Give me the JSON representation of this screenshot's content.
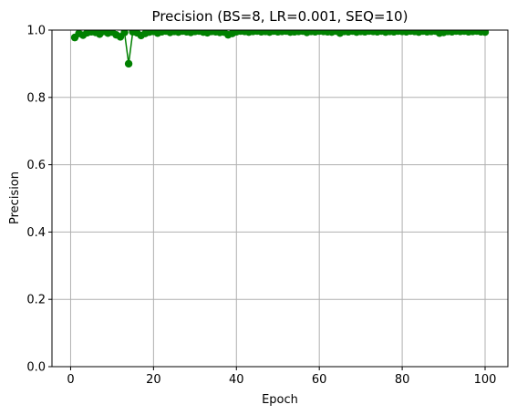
{
  "chart_data": {
    "type": "line",
    "title": "Precision (BS=8, LR=0.001, SEQ=10)",
    "xlabel": "Epoch",
    "ylabel": "Precision",
    "xlim": [
      -4.5,
      105.5
    ],
    "ylim": [
      0.0,
      1.0
    ],
    "xticks": [
      0,
      20,
      40,
      60,
      80,
      100
    ],
    "xtick_labels": [
      "0",
      "20",
      "40",
      "60",
      "80",
      "100"
    ],
    "yticks": [
      0.0,
      0.2,
      0.4,
      0.6,
      0.8,
      1.0
    ],
    "ytick_labels": [
      "0.0",
      "0.2",
      "0.4",
      "0.6",
      "0.8",
      "1.0"
    ],
    "grid": true,
    "series_color": "#008000",
    "marker": "circle",
    "series": [
      {
        "x": [
          1,
          2,
          3,
          4,
          5,
          6,
          7,
          8,
          9,
          10,
          11,
          12,
          13,
          14,
          15,
          16,
          17,
          18,
          19,
          20,
          21,
          22,
          23,
          24,
          25,
          26,
          27,
          28,
          29,
          30,
          31,
          32,
          33,
          34,
          35,
          36,
          37,
          38,
          39,
          40,
          41,
          42,
          43,
          44,
          45,
          46,
          47,
          48,
          49,
          50,
          51,
          52,
          53,
          54,
          55,
          56,
          57,
          58,
          59,
          60,
          61,
          62,
          63,
          64,
          65,
          66,
          67,
          68,
          69,
          70,
          71,
          72,
          73,
          74,
          75,
          76,
          77,
          78,
          79,
          80,
          81,
          82,
          83,
          84,
          85,
          86,
          87,
          88,
          89,
          90,
          91,
          92,
          93,
          94,
          95,
          96,
          97,
          98,
          99,
          100
        ],
        "values": [
          0.978,
          0.99,
          0.985,
          0.992,
          0.995,
          0.993,
          0.988,
          0.996,
          0.991,
          0.994,
          0.986,
          0.98,
          0.993,
          0.9,
          0.995,
          0.992,
          0.984,
          0.99,
          0.994,
          0.996,
          0.991,
          0.995,
          0.997,
          0.993,
          0.996,
          0.994,
          0.997,
          0.995,
          0.993,
          0.996,
          0.997,
          0.994,
          0.992,
          0.996,
          0.995,
          0.993,
          0.994,
          0.986,
          0.99,
          0.995,
          0.997,
          0.996,
          0.994,
          0.996,
          0.997,
          0.995,
          0.996,
          0.994,
          0.997,
          0.995,
          0.996,
          0.997,
          0.994,
          0.995,
          0.996,
          0.997,
          0.993,
          0.996,
          0.995,
          0.997,
          0.996,
          0.995,
          0.994,
          0.997,
          0.991,
          0.996,
          0.995,
          0.997,
          0.994,
          0.996,
          0.995,
          0.997,
          0.996,
          0.995,
          0.997,
          0.994,
          0.996,
          0.995,
          0.997,
          0.996,
          0.995,
          0.997,
          0.996,
          0.994,
          0.997,
          0.995,
          0.996,
          0.997,
          0.991,
          0.993,
          0.996,
          0.995,
          0.997,
          0.996,
          0.997,
          0.995,
          0.996,
          0.997,
          0.995,
          0.994
        ]
      }
    ]
  }
}
